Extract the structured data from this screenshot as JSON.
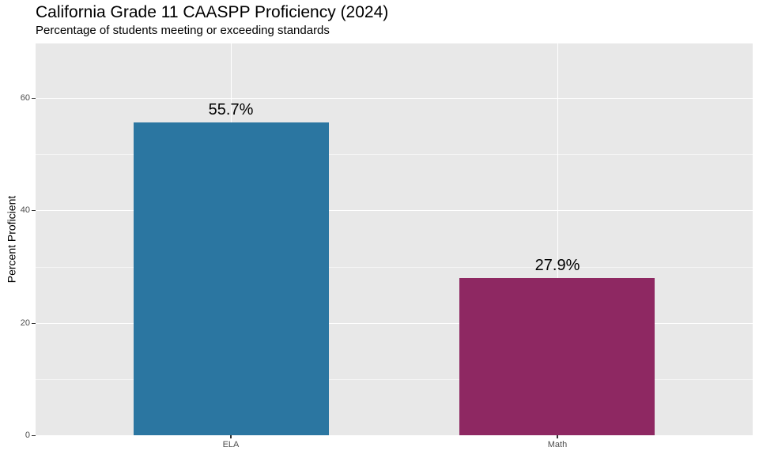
{
  "chart_data": {
    "type": "bar",
    "title": "California Grade 11 CAASPP Proficiency (2024)",
    "subtitle": "Percentage of students meeting or exceeding standards",
    "xlabel": "",
    "ylabel": "Percent Proficient",
    "categories": [
      "ELA",
      "Math"
    ],
    "values": [
      55.7,
      27.9
    ],
    "bar_labels": [
      "55.7%",
      "27.9%"
    ],
    "bar_colors": [
      "#2B76A1",
      "#8E2862"
    ],
    "ylim": [
      0,
      70
    ],
    "yticks": [
      0,
      20,
      40,
      60
    ],
    "ytick_labels": [
      "0",
      "20",
      "40",
      "60"
    ],
    "yticks_minor": [
      10,
      30,
      50
    ],
    "grid": true,
    "legend": false,
    "panel_bg": "#E8E8E8",
    "grid_color": "#FFFFFF",
    "axis_text_color": "#4d4d4d"
  }
}
